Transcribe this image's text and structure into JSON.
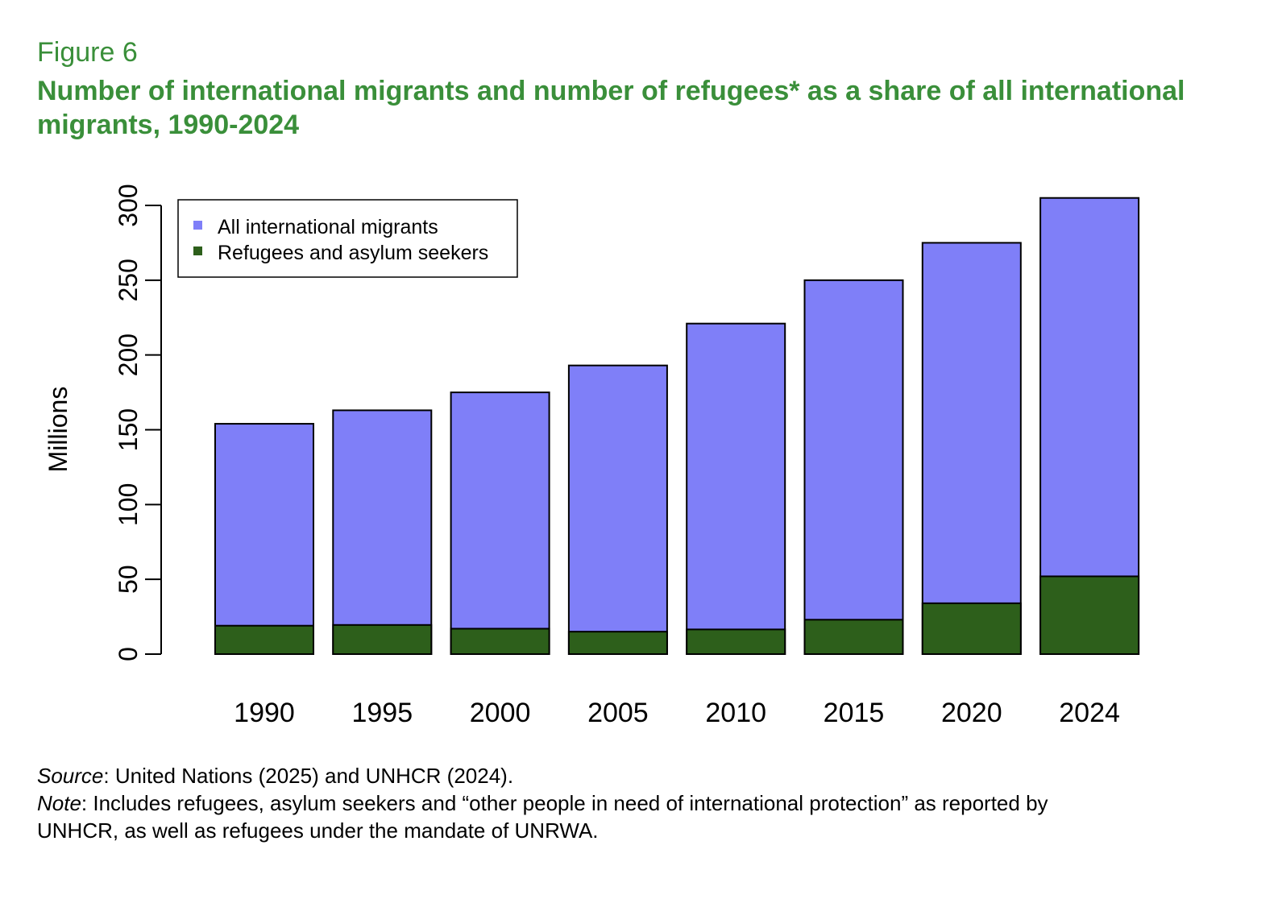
{
  "figure": {
    "label": "Figure 6",
    "title": "Number of international migrants and number of refugees* as a share of all international migrants, 1990-2024"
  },
  "footnotes": {
    "source_label": "Source",
    "source_text": ": United Nations (2025) and UNHCR (2024).",
    "note_label": "Note",
    "note_text_line1": ": Includes refugees, asylum seekers and “other people in need of international protection” as reported by",
    "note_text_line2": "UNHCR, as well as refugees under the mandate of UNRWA."
  },
  "colors": {
    "title": "#3a8f3a",
    "migrants": "#7f7ff8",
    "refugees": "#2d5f1b",
    "axis": "#000000"
  },
  "chart_data": {
    "type": "bar",
    "title": "",
    "xlabel": "",
    "ylabel": "Millions",
    "ylim": [
      0,
      300
    ],
    "yticks": [
      0,
      50,
      100,
      150,
      200,
      250,
      300
    ],
    "categories": [
      "1990",
      "1995",
      "2000",
      "2005",
      "2010",
      "2015",
      "2020",
      "2024"
    ],
    "series": [
      {
        "name": "All international migrants",
        "color": "#7f7ff8",
        "values": [
          154,
          163,
          175,
          193,
          221,
          250,
          275,
          305
        ]
      },
      {
        "name": "Refugees and asylum seekers",
        "color": "#2d5f1b",
        "values": [
          19,
          19.5,
          17,
          15,
          16.5,
          23,
          34,
          52
        ]
      }
    ],
    "legend": "top-left",
    "grid": false
  }
}
